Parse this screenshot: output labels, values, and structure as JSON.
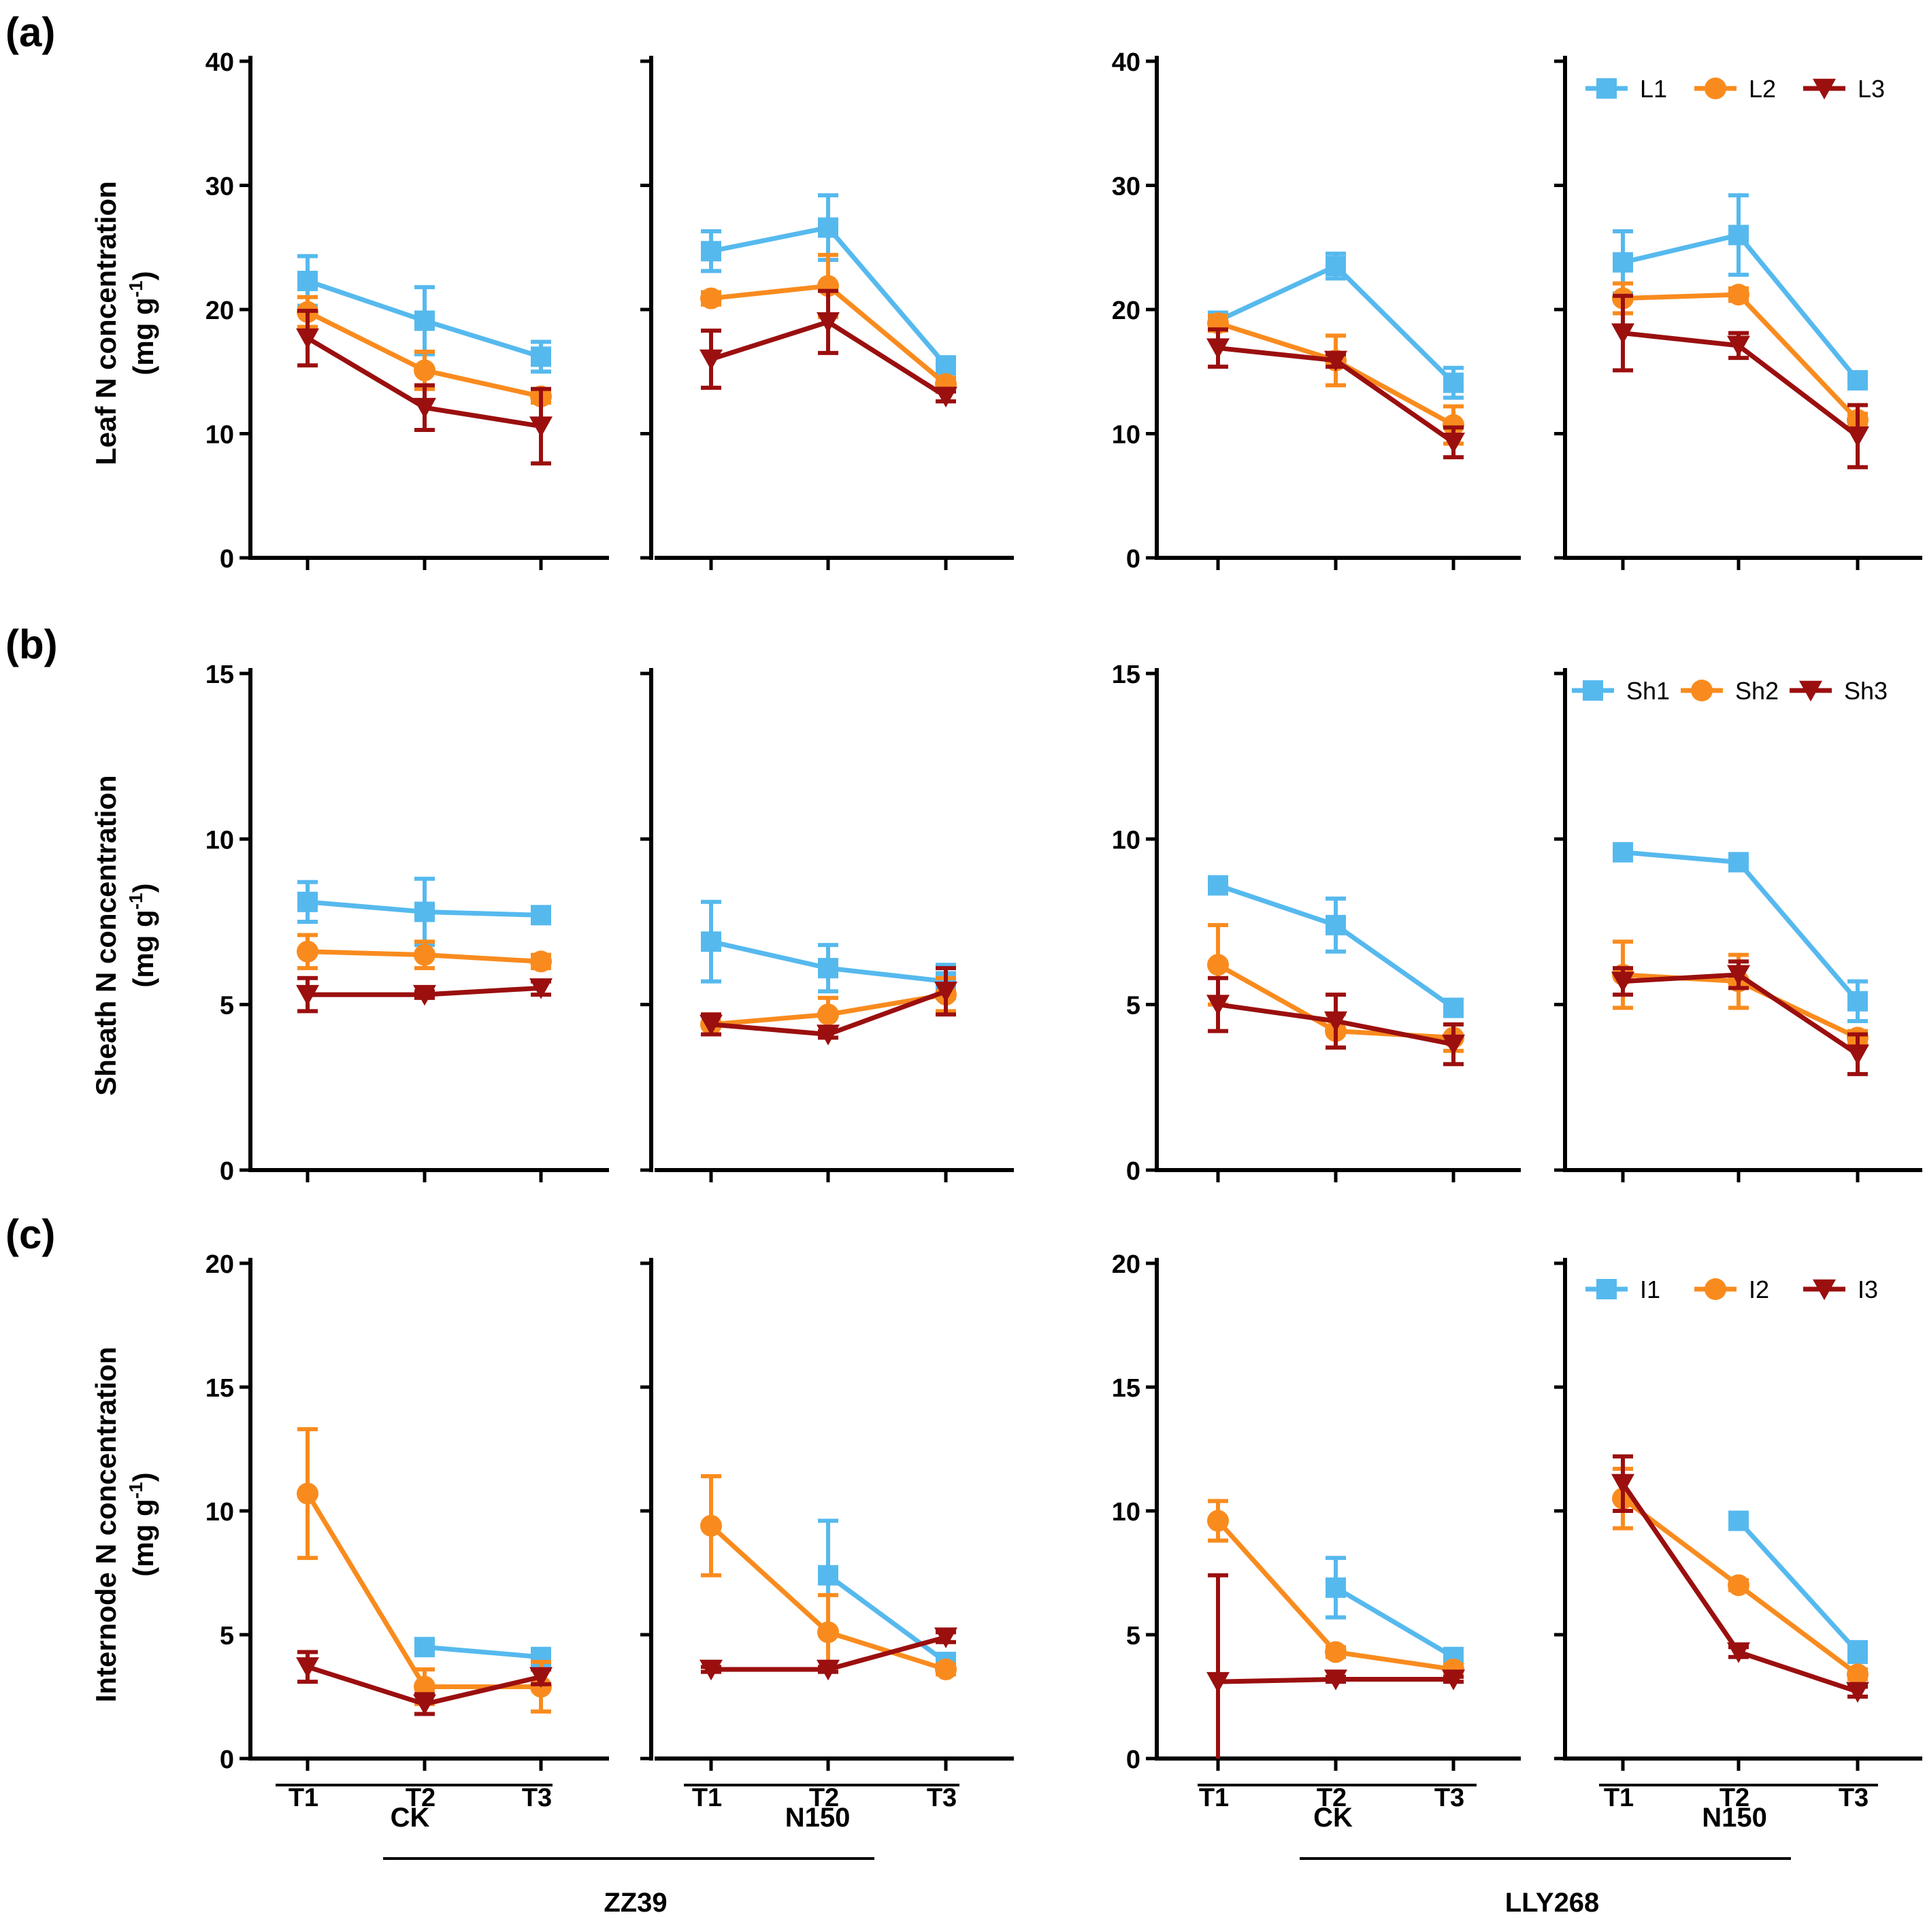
{
  "figure": {
    "groups": {
      "treatments": [
        "CK",
        "N150",
        "CK",
        "N150"
      ],
      "cultivars": [
        "ZZ39",
        "LLY268"
      ]
    },
    "x_tick_labels": [
      "T1",
      "T2",
      "T3"
    ]
  },
  "chart_data": [
    {
      "type": "line",
      "panel": "(a)",
      "ylabel_line1": "Leaf N concentration",
      "ylabel_line2": "(mg g",
      "ylabel_sup": "-1",
      "ylabel_close": ")",
      "ylim": [
        0,
        40
      ],
      "yticks": [
        "0",
        "10",
        "20",
        "30",
        "40"
      ],
      "categories": [
        "T1",
        "T2",
        "T3"
      ],
      "legend": [
        {
          "name": "L1",
          "color": "#56B9EE",
          "marker": "square"
        },
        {
          "name": "L2",
          "color": "#F98B1E",
          "marker": "circle"
        },
        {
          "name": "L3",
          "color": "#9B0F0F",
          "marker": "triangle-down"
        }
      ],
      "subplots": [
        {
          "cultivar": "ZZ39",
          "treatment": "CK",
          "series": [
            {
              "name": "L1",
              "values": [
                22.3,
                19.1,
                16.2
              ],
              "errors": [
                2.0,
                2.7,
                1.2
              ]
            },
            {
              "name": "L2",
              "values": [
                19.8,
                15.1,
                13.0
              ],
              "errors": [
                1.2,
                1.5,
                0.5
              ]
            },
            {
              "name": "L3",
              "values": [
                17.7,
                12.1,
                10.6
              ],
              "errors": [
                2.2,
                1.8,
                3.0
              ]
            }
          ]
        },
        {
          "cultivar": "ZZ39",
          "treatment": "N150",
          "series": [
            {
              "name": "L1",
              "values": [
                24.7,
                26.6,
                15.5
              ],
              "errors": [
                1.6,
                2.6,
                0.6
              ]
            },
            {
              "name": "L2",
              "values": [
                20.9,
                21.9,
                14.0
              ],
              "errors": [
                0.5,
                2.5,
                0.5
              ]
            },
            {
              "name": "L3",
              "values": [
                16.0,
                19.0,
                13.0
              ],
              "errors": [
                2.3,
                2.5,
                0.4
              ]
            }
          ]
        },
        {
          "cultivar": "LLY268",
          "treatment": "CK",
          "series": [
            {
              "name": "L1",
              "values": [
                19.1,
                23.5,
                14.1
              ],
              "errors": [
                0.5,
                1.0,
                1.2
              ]
            },
            {
              "name": "L2",
              "values": [
                18.9,
                15.9,
                10.7
              ],
              "errors": [
                0.6,
                2.0,
                1.5
              ]
            },
            {
              "name": "L3",
              "values": [
                16.9,
                15.9,
                9.3
              ],
              "errors": [
                1.5,
                0.5,
                1.2
              ]
            }
          ]
        },
        {
          "cultivar": "LLY268",
          "treatment": "N150",
          "series": [
            {
              "name": "L1",
              "values": [
                23.8,
                26.0,
                14.3
              ],
              "errors": [
                2.5,
                3.2,
                0.6
              ]
            },
            {
              "name": "L2",
              "values": [
                20.9,
                21.2,
                11.1
              ],
              "errors": [
                1.2,
                0.5,
                0.5
              ]
            },
            {
              "name": "L3",
              "values": [
                18.1,
                17.1,
                9.8
              ],
              "errors": [
                3.0,
                1.0,
                2.5
              ]
            }
          ]
        }
      ]
    },
    {
      "type": "line",
      "panel": "(b)",
      "ylabel_line1": "Sheath N concentration",
      "ylabel_line2": "(mg g",
      "ylabel_sup": "-1",
      "ylabel_close": ")",
      "ylim": [
        0,
        15
      ],
      "yticks": [
        "0",
        "5",
        "10",
        "15"
      ],
      "categories": [
        "T1",
        "T2",
        "T3"
      ],
      "legend": [
        {
          "name": "Sh1",
          "color": "#56B9EE",
          "marker": "square"
        },
        {
          "name": "Sh2",
          "color": "#F98B1E",
          "marker": "circle"
        },
        {
          "name": "Sh3",
          "color": "#9B0F0F",
          "marker": "triangle-down"
        }
      ],
      "subplots": [
        {
          "cultivar": "ZZ39",
          "treatment": "CK",
          "series": [
            {
              "name": "Sh1",
              "values": [
                8.1,
                7.8,
                7.7
              ],
              "errors": [
                0.6,
                1.0,
                0.2
              ]
            },
            {
              "name": "Sh2",
              "values": [
                6.6,
                6.5,
                6.3
              ],
              "errors": [
                0.5,
                0.4,
                0.2
              ]
            },
            {
              "name": "Sh3",
              "values": [
                5.3,
                5.3,
                5.5
              ],
              "errors": [
                0.5,
                0.1,
                0.2
              ]
            }
          ]
        },
        {
          "cultivar": "ZZ39",
          "treatment": "N150",
          "series": [
            {
              "name": "Sh1",
              "values": [
                6.9,
                6.1,
                5.7
              ],
              "errors": [
                1.2,
                0.7,
                0.5
              ]
            },
            {
              "name": "Sh2",
              "values": [
                4.4,
                4.7,
                5.3
              ],
              "errors": [
                0.3,
                0.5,
                0.5
              ]
            },
            {
              "name": "Sh3",
              "values": [
                4.4,
                4.1,
                5.4
              ],
              "errors": [
                0.3,
                0.1,
                0.7
              ]
            }
          ]
        },
        {
          "cultivar": "LLY268",
          "treatment": "CK",
          "series": [
            {
              "name": "Sh1",
              "values": [
                8.6,
                7.4,
                4.9
              ],
              "errors": [
                0.2,
                0.8,
                0.2
              ]
            },
            {
              "name": "Sh2",
              "values": [
                6.2,
                4.2,
                4.0
              ],
              "errors": [
                1.2,
                0.5,
                0.4
              ]
            },
            {
              "name": "Sh3",
              "values": [
                5.0,
                4.5,
                3.8
              ],
              "errors": [
                0.8,
                0.8,
                0.6
              ]
            }
          ]
        },
        {
          "cultivar": "LLY268",
          "treatment": "N150",
          "series": [
            {
              "name": "Sh1",
              "values": [
                9.6,
                9.3,
                5.1
              ],
              "errors": [
                0.1,
                0.2,
                0.6
              ]
            },
            {
              "name": "Sh2",
              "values": [
                5.9,
                5.7,
                4.0
              ],
              "errors": [
                1.0,
                0.8,
                0.2
              ]
            },
            {
              "name": "Sh3",
              "values": [
                5.7,
                5.9,
                3.5
              ],
              "errors": [
                0.4,
                0.4,
                0.6
              ]
            }
          ]
        }
      ]
    },
    {
      "type": "line",
      "panel": "(c)",
      "ylabel_line1": "Internode N concentration",
      "ylabel_line2": "(mg g",
      "ylabel_sup": "-1",
      "ylabel_close": ")",
      "ylim": [
        0,
        20
      ],
      "yticks": [
        "0",
        "5",
        "10",
        "15",
        "20"
      ],
      "categories": [
        "T1",
        "T2",
        "T3"
      ],
      "legend": [
        {
          "name": "I1",
          "color": "#56B9EE",
          "marker": "square"
        },
        {
          "name": "I2",
          "color": "#F98B1E",
          "marker": "circle"
        },
        {
          "name": "I3",
          "color": "#9B0F0F",
          "marker": "triangle-down"
        }
      ],
      "subplots": [
        {
          "cultivar": "ZZ39",
          "treatment": "CK",
          "series": [
            {
              "name": "I1",
              "values": [
                null,
                4.5,
                4.1
              ],
              "errors": [
                null,
                0.2,
                0.2
              ]
            },
            {
              "name": "I2",
              "values": [
                10.7,
                2.9,
                2.9
              ],
              "errors": [
                2.6,
                0.7,
                1.0
              ]
            },
            {
              "name": "I3",
              "values": [
                3.7,
                2.2,
                3.3
              ],
              "errors": [
                0.6,
                0.4,
                0.3
              ]
            }
          ]
        },
        {
          "cultivar": "ZZ39",
          "treatment": "N150",
          "series": [
            {
              "name": "I1",
              "values": [
                null,
                7.4,
                3.9
              ],
              "errors": [
                null,
                2.2,
                0.3
              ]
            },
            {
              "name": "I2",
              "values": [
                9.4,
                5.1,
                3.6
              ],
              "errors": [
                2.0,
                1.5,
                0.2
              ]
            },
            {
              "name": "I3",
              "values": [
                3.6,
                3.6,
                4.9
              ],
              "errors": [
                0.1,
                0.1,
                0.2
              ]
            }
          ]
        },
        {
          "cultivar": "LLY268",
          "treatment": "CK",
          "series": [
            {
              "name": "I1",
              "values": [
                null,
                6.9,
                4.1
              ],
              "errors": [
                null,
                1.2,
                0.2
              ]
            },
            {
              "name": "I2",
              "values": [
                9.6,
                4.3,
                3.6
              ],
              "errors": [
                0.8,
                0.2,
                0.2
              ]
            },
            {
              "name": "I3",
              "values": [
                3.1,
                3.2,
                3.2
              ],
              "errors": [
                4.3,
                0.1,
                0.1
              ]
            }
          ]
        },
        {
          "cultivar": "LLY268",
          "treatment": "N150",
          "series": [
            {
              "name": "I1",
              "values": [
                null,
                9.6,
                4.3
              ],
              "errors": [
                null,
                0.2,
                0.4
              ]
            },
            {
              "name": "I2",
              "values": [
                10.5,
                7.0,
                3.4
              ],
              "errors": [
                1.2,
                0.2,
                0.2
              ]
            },
            {
              "name": "I3",
              "values": [
                11.1,
                4.3,
                2.7
              ],
              "errors": [
                1.1,
                0.2,
                0.2
              ]
            }
          ]
        }
      ]
    }
  ]
}
